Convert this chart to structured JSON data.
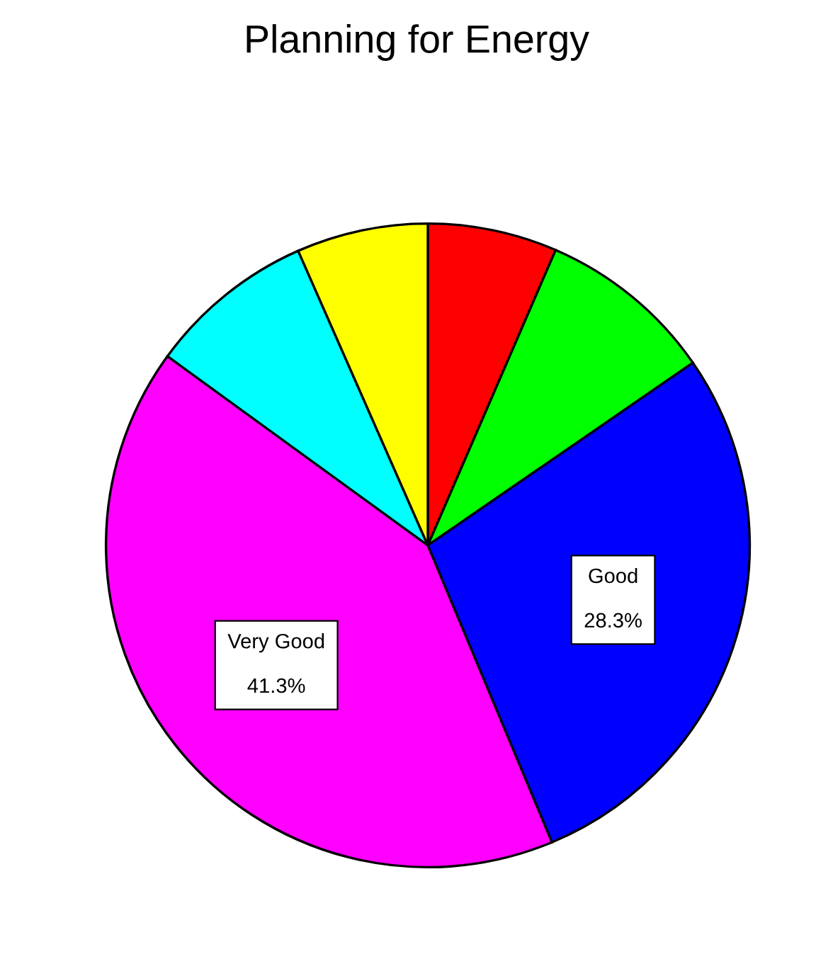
{
  "chart_data": {
    "type": "pie",
    "title": "Planning for Energy",
    "categories": [
      null,
      null,
      "Good",
      "Very Good",
      null,
      null
    ],
    "values": [
      6.5,
      8.9,
      28.3,
      41.3,
      8.4,
      6.6
    ],
    "colors": [
      "#ff0000",
      "#00ff00",
      "#0000ff",
      "#ff00ff",
      "#00ffff",
      "#ffff00"
    ],
    "value_labels": [
      null,
      null,
      "28.3%",
      "41.3%",
      null,
      null
    ],
    "legend": false
  }
}
